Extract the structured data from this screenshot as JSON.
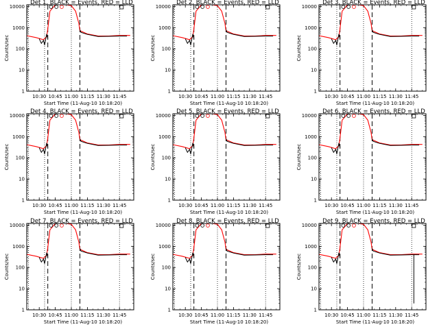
{
  "colors": {
    "events": "#000000",
    "lld": "#ff0000",
    "background": "#ffffff"
  },
  "chart_data": {
    "type": "line",
    "layout": "3x3 grid of panels",
    "yscale": "log",
    "ylim": [
      1,
      12000
    ],
    "y_ticks": [
      1,
      10,
      100,
      1000,
      10000
    ],
    "ylabel": "Counts/sec",
    "xlabel": "Start Time (11-Aug-10 10:18:20)",
    "xlim": [
      "10:18:20",
      "11:58:20"
    ],
    "x_ticks_a": [
      "10:30",
      "10:45",
      "11:00",
      "11:15",
      "11:30",
      "11:45"
    ],
    "x_ticks_b": [
      "10:30",
      "10:45",
      "11:00",
      "11:15",
      "11:30",
      "11:45"
    ],
    "vlines_dashed": [
      "10:38",
      "11:08"
    ],
    "vlines_dotted": [
      "10:20",
      "10:35",
      "11:00",
      "11:45"
    ],
    "marker_time": "11:47",
    "series_names": [
      "BLACK = Events",
      "RED = LLD"
    ],
    "lld_series": {
      "x": [
        "10:18",
        "10:27",
        "10:34",
        "10:37",
        "10:38",
        "10:40",
        "10:45",
        "10:50",
        "10:55",
        "11:00",
        "11:04",
        "11:07",
        "11:08",
        "11:15",
        "11:25",
        "11:35",
        "11:45",
        "11:55"
      ],
      "y": [
        420,
        340,
        270,
        380,
        900,
        6000,
        12000,
        12000,
        12000,
        11000,
        6000,
        1600,
        720,
        500,
        400,
        400,
        430,
        430
      ]
    },
    "events_series": {
      "x": [
        "10:30",
        "10:32",
        "10:34",
        "10:35",
        "10:37",
        "10:38",
        "11:08",
        "11:09",
        "11:15",
        "11:25",
        "11:35",
        "11:45",
        "11:52"
      ],
      "y": [
        300,
        180,
        250,
        150,
        500,
        300,
        800,
        600,
        480,
        380,
        390,
        400,
        400
      ]
    },
    "panels": [
      {
        "title": "Det 1, BLACK = Events, RED = LLD",
        "xticks": "a"
      },
      {
        "title": "Det 2, BLACK = Events, RED = LLD",
        "xticks": "b"
      },
      {
        "title": "Det 3, BLACK = Events, RED = LLD",
        "xticks": "b"
      },
      {
        "title": "Det 4, BLACK = Events, RED = LLD",
        "xticks": "a"
      },
      {
        "title": "Det 5, BLACK = Events, RED = LLD",
        "xticks": "b"
      },
      {
        "title": "Det 6, BLACK = Events, RED = LLD",
        "xticks": "b"
      },
      {
        "title": "Det 7, BLACK = Events, RED = LLD",
        "xticks": "a"
      },
      {
        "title": "Det 8, BLACK = Events, RED = LLD",
        "xticks": "b"
      },
      {
        "title": "Det 9, BLACK = Events, RED = LLD",
        "xticks": "b",
        "spike_time": "11:47",
        "spike_low": 2
      }
    ]
  }
}
